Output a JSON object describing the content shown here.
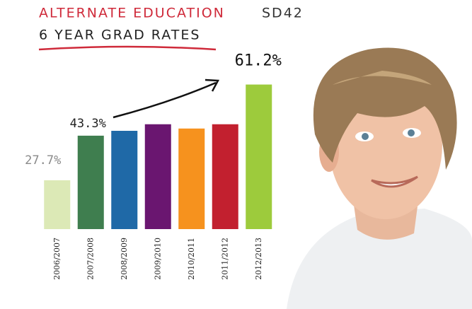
{
  "chart_data": {
    "type": "bar",
    "title": "ALTERNATE EDUCATION",
    "district": "SD42",
    "subtitle": "6 YEAR GRAD RATES",
    "categories": [
      "2006/2007",
      "2007/2008",
      "2008/2009",
      "2009/2010",
      "2010/2011",
      "2011/2012",
      "2012/2013"
    ],
    "values": [
      27.7,
      43.3,
      45.0,
      47.3,
      45.8,
      47.3,
      61.2
    ],
    "value_labels": [
      "27.7%",
      "43.3%",
      null,
      null,
      null,
      null,
      "61.2%"
    ],
    "colors": [
      "#dce9b6",
      "#3f7e4f",
      "#1f69a7",
      "#6a1670",
      "#f6921e",
      "#c2202f",
      "#9dcb3c"
    ],
    "ylim": [
      10.6,
      70
    ]
  }
}
